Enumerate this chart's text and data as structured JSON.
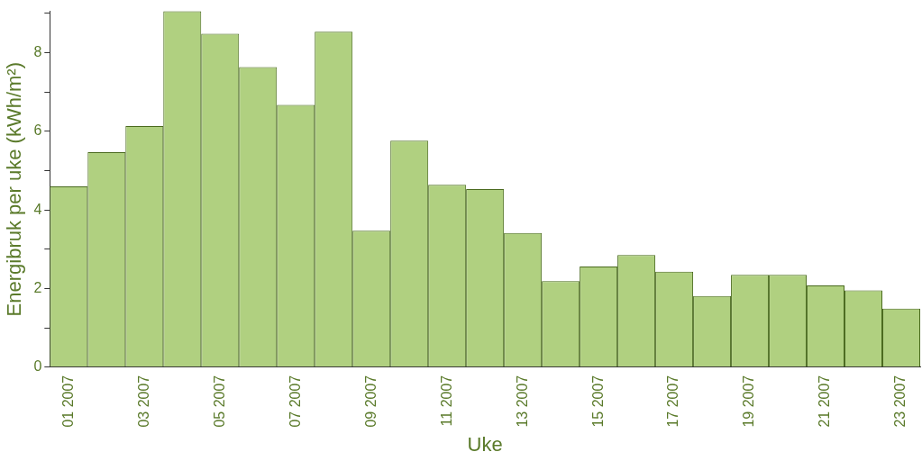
{
  "chart_data": {
    "type": "bar",
    "xlabel": "Uke",
    "ylabel": "Energibruk per uke (kWh/m²)",
    "categories": [
      "01 2007",
      null,
      "03 2007",
      null,
      "05 2007",
      null,
      "07 2007",
      null,
      "09 2007",
      null,
      "11 2007",
      null,
      "13 2007",
      null,
      "15 2007",
      null,
      "17 2007",
      null,
      "19 2007",
      null,
      "21 2007",
      null,
      "23 2007"
    ],
    "values": [
      4.6,
      5.47,
      6.13,
      9.05,
      8.48,
      7.63,
      6.67,
      8.53,
      3.47,
      5.76,
      4.64,
      4.53,
      3.41,
      2.19,
      2.56,
      2.85,
      2.43,
      1.81,
      2.35,
      2.35,
      2.08,
      1.95,
      1.49
    ],
    "color": "#b0d080",
    "ylim": [
      0,
      9.05
    ],
    "yticks": [
      0,
      {
        "value": 1,
        "label": null
      },
      2,
      {
        "value": 3,
        "label": null
      },
      4,
      {
        "value": 5,
        "label": null
      },
      6,
      {
        "value": 7,
        "label": null
      },
      8,
      {
        "value": 9,
        "label": null
      }
    ],
    "grid": false,
    "legend": false
  }
}
